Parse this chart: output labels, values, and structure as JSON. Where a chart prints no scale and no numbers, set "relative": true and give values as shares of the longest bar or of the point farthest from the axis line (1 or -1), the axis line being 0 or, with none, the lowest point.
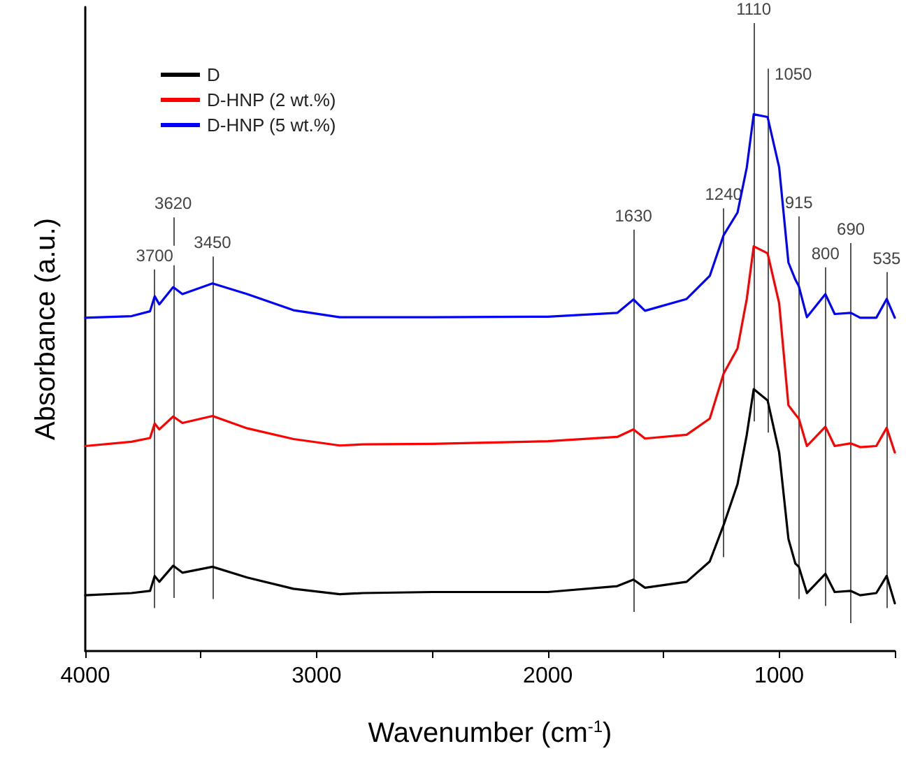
{
  "chart_data": {
    "type": "line",
    "relative": true,
    "xlabel": "Wavenumber (cm$^{-1}$)",
    "ylabel": "Absorbance (a.u.)",
    "xlim": [
      4000,
      500
    ],
    "xticks": [
      4000,
      {
        "value": 3500,
        "label": null
      },
      3000,
      {
        "value": 2500,
        "label": null
      },
      2000,
      {
        "value": 1500,
        "label": null
      },
      1000,
      {
        "value": 500,
        "label": null
      }
    ],
    "x": [
      4000,
      3800,
      3720,
      3700,
      3680,
      3620,
      3580,
      3450,
      3300,
      3100,
      2900,
      2800,
      2500,
      2000,
      1700,
      1630,
      1580,
      1400,
      1300,
      1240,
      1180,
      1140,
      1110,
      1050,
      1000,
      960,
      930,
      915,
      880,
      800,
      760,
      690,
      650,
      580,
      535,
      500
    ],
    "series": [
      {
        "name": "D",
        "color": "#000000",
        "values": [
          0.104,
          0.108,
          0.112,
          0.14,
          0.129,
          0.159,
          0.146,
          0.157,
          0.137,
          0.116,
          0.106,
          0.108,
          0.11,
          0.11,
          0.121,
          0.133,
          0.118,
          0.129,
          0.167,
          0.235,
          0.311,
          0.403,
          0.488,
          0.467,
          0.37,
          0.209,
          0.163,
          0.157,
          0.108,
          0.144,
          0.11,
          0.112,
          0.104,
          0.108,
          0.14,
          0.089
        ]
      },
      {
        "name": "D-HNP (2 wt.%)",
        "color": "#ff0000",
        "values": [
          0.382,
          0.39,
          0.397,
          0.424,
          0.413,
          0.437,
          0.425,
          0.438,
          0.415,
          0.395,
          0.383,
          0.385,
          0.386,
          0.391,
          0.399,
          0.413,
          0.396,
          0.403,
          0.433,
          0.517,
          0.564,
          0.656,
          0.754,
          0.741,
          0.648,
          0.458,
          0.441,
          0.433,
          0.382,
          0.418,
          0.382,
          0.387,
          0.38,
          0.382,
          0.416,
          0.37
        ]
      },
      {
        "name": "D-HNP (5 wt.%)",
        "color": "#0000ff",
        "values": [
          0.621,
          0.624,
          0.633,
          0.661,
          0.646,
          0.678,
          0.665,
          0.685,
          0.665,
          0.635,
          0.622,
          0.622,
          0.622,
          0.623,
          0.63,
          0.655,
          0.634,
          0.656,
          0.699,
          0.775,
          0.817,
          0.901,
          1.0,
          0.995,
          0.901,
          0.724,
          0.692,
          0.68,
          0.622,
          0.665,
          0.628,
          0.63,
          0.621,
          0.621,
          0.656,
          0.621
        ]
      }
    ],
    "ref_lines": [
      {
        "axis": "x",
        "value": 3700,
        "label": "3700"
      },
      {
        "axis": "x",
        "value": 3620,
        "label": "3620"
      },
      {
        "axis": "x",
        "value": 3450,
        "label": "3450"
      },
      {
        "axis": "x",
        "value": 1630,
        "label": "1630"
      },
      {
        "axis": "x",
        "value": 1240,
        "label": "1240"
      },
      {
        "axis": "x",
        "value": 1110,
        "label": "1110"
      },
      {
        "axis": "x",
        "value": 1050,
        "label": "1050"
      },
      {
        "axis": "x",
        "value": 915,
        "label": "915"
      },
      {
        "axis": "x",
        "value": 800,
        "label": "800"
      },
      {
        "axis": "x",
        "value": 690,
        "label": "690"
      },
      {
        "axis": "x",
        "value": 535,
        "label": "535"
      }
    ],
    "legend": "top left",
    "grid": false,
    "marker": "none"
  }
}
